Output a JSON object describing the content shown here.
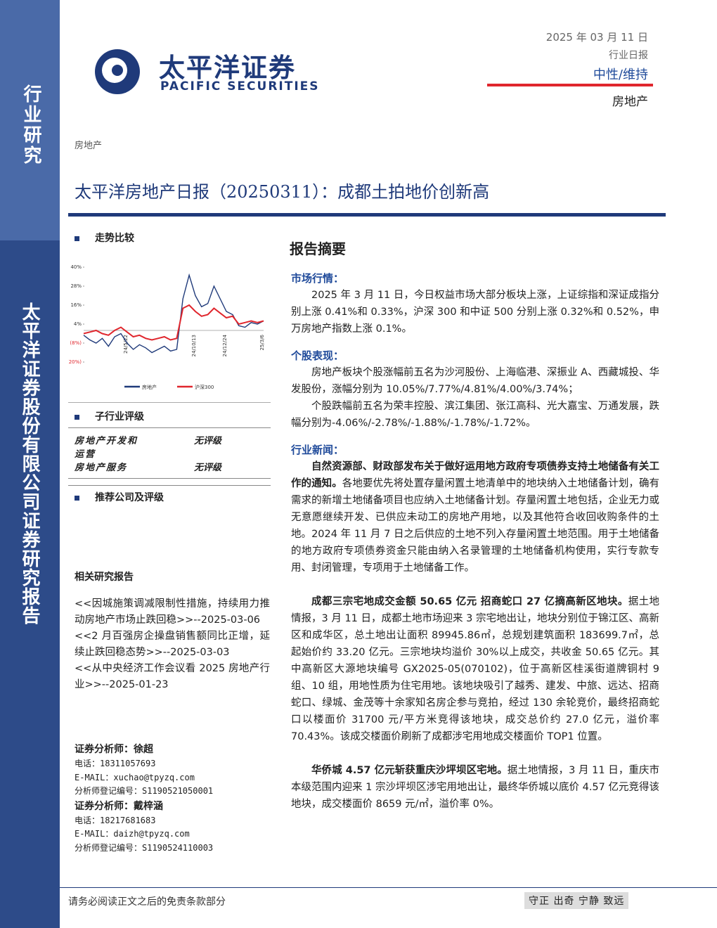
{
  "header": {
    "logo_cn": "太平洋证券",
    "logo_en": "PACIFIC SECURITIES",
    "date": "2025 年 03 月 11 日",
    "report_type": "行业日报",
    "rating": "中性/维持",
    "industry": "房地产"
  },
  "sidebar": {
    "top": "行业研究",
    "bottom": "太平洋证券股份有限公司证券研究报告"
  },
  "breadcrumb": "房地产",
  "title": "太平洋房地产日报（20250311）：成都土拍地价创新高",
  "left": {
    "trend_heading": "走势比较",
    "chart_data": {
      "type": "line",
      "categories": [
        null,
        null,
        null,
        null,
        null,
        null,
        null,
        "24/5/22",
        null,
        null,
        null,
        null,
        null,
        null,
        null,
        null,
        null,
        null,
        "24/10/13",
        null,
        null,
        null,
        null,
        "24/12/24",
        null,
        null,
        null,
        null,
        null,
        "25/3/6"
      ],
      "series": [
        {
          "name": "房地产",
          "color": "#1f3a7a",
          "values": [
            -3,
            -6,
            -8,
            -5,
            -10,
            -4,
            -2,
            -8,
            -12,
            -9,
            -11,
            -14,
            -12,
            -10,
            -13,
            -12,
            20,
            35,
            22,
            15,
            17,
            28,
            20,
            12,
            10,
            3,
            2,
            5,
            4,
            6
          ]
        },
        {
          "name": "沪深300",
          "color": "#e0262d",
          "values": [
            -2,
            -1,
            0,
            -2,
            -3,
            0,
            2,
            -1,
            -4,
            -3,
            -5,
            -6,
            -5,
            -4,
            -6,
            -5,
            14,
            16,
            12,
            9,
            10,
            14,
            11,
            8,
            9,
            4,
            5,
            6,
            5,
            6
          ]
        }
      ],
      "ylim": [
        -20,
        40
      ],
      "yticks": [
        {
          "value": 40,
          "label": "40%"
        },
        {
          "value": 28,
          "label": "28%"
        },
        {
          "value": 16,
          "label": "16%"
        },
        {
          "value": 4,
          "label": "4%"
        },
        {
          "value": -8,
          "label": "(8%)"
        },
        {
          "value": -20,
          "label": "(20%)"
        }
      ]
    },
    "sub_heading": "子行业评级",
    "sub_rows": [
      [
        "房地产开发和运营",
        "无评级"
      ],
      [
        "房地产服务",
        "无评级"
      ]
    ],
    "rec_heading": "推荐公司及评级",
    "related_heading": "相关研究报告",
    "related": [
      "<<因城施策调减限制性措施，持续用力推动房地产市场止跌回稳>>--2025-03-06",
      "<<2 月百强房企操盘销售额同比正增，延续止跌回稳态势>>--2025-03-03",
      "<<从中央经济工作会议看 2025 房地产行业>>--2025-01-23"
    ],
    "analysts": [
      {
        "name": "证券分析师：徐超",
        "phone": "电话：18311057693",
        "email": "E-MAIL：xuchao@tpyzq.com",
        "reg": "分析师登记编号：S1190521050001"
      },
      {
        "name": "证券分析师：戴梓涵",
        "phone": "电话：18217681683",
        "email": "E-MAIL：daizh@tpyzq.com",
        "reg": "分析师登记编号：S1190524110003"
      }
    ]
  },
  "right": {
    "heading": "报告摘要",
    "sections": [
      {
        "title": "市场行情：",
        "paras": [
          {
            "lead": "",
            "text": "2025 年 3 月 11 日，今日权益市场大部分板块上涨，上证综指和深证成指分别上涨 0.41%和 0.33%，沪深 300 和中证 500 分别上涨 0.32%和 0.52%，申万房地产指数上涨 0.1%。"
          }
        ]
      },
      {
        "title": "个股表现：",
        "paras": [
          {
            "lead": "",
            "text": "房地产板块个股涨幅前五名为沙河股份、上海临港、深振业 A、西藏城投、华发股份，涨幅分别为 10.05%/7.77%/4.81%/4.00%/3.74%；"
          },
          {
            "lead": "",
            "text": "个股跌幅前五名为荣丰控股、滨江集团、张江高科、光大嘉宝、万通发展，跌幅分别为-4.06%/-2.78%/-1.88%/-1.78%/-1.72%。"
          }
        ]
      },
      {
        "title": "行业新闻：",
        "paras": [
          {
            "lead": "自然资源部、财政部发布关于做好运用地方政府专项债券支持土地储备有关工作的通知。",
            "text": "各地要优先将处置存量闲置土地清单中的地块纳入土地储备计划，确有需求的新增土地储备项目也应纳入土地储备计划。存量闲置土地包括，企业无力或无意愿继续开发、已供应未动工的房地产用地，以及其他符合收回收购条件的土地。2024 年 11 月 7 日之后供应的土地不列入存量闲置土地范围。用于土地储备的地方政府专项债券资金只能由纳入名录管理的土地储备机构使用，实行专款专用、封闭管理，专项用于土地储备工作。"
          },
          {
            "lead": "成都三宗宅地成交金额 50.65 亿元 招商蛇口 27 亿摘高新区地块。",
            "text": "据土地情报，3 月 11 日，成都土地市场迎来 3 宗宅地出让，地块分别位于锦江区、高新区和成华区，总土地出让面积 89945.86㎡，总规划建筑面积 183699.7㎡，总起始价约 33.20 亿元。三宗地块均溢价 30%以上成交，共收金 50.65 亿元。其中高新区大源地块编号 GX2025-05(070102)，位于高新区桂溪街道牌铜村 9 组、10 组，用地性质为住宅用地。该地块吸引了越秀、建发、中旅、远达、招商蛇口、绿城、金茂等十余家知名房企参与竞拍，经过 130 余轮竞价，最终招商蛇口以楼面价 31700 元/平方米竞得该地块，成交总价约 27.0 亿元，溢价率 70.43%。该成交楼面价刷新了成都涉宅用地成交楼面价 TOP1 位置。"
          },
          {
            "lead": "华侨城 4.57 亿元斩获重庆沙坪坝区宅地。",
            "text": "据土地情报，3 月 11 日，重庆市本级范围内迎来 1 宗沙坪坝区涉宅用地出让，最终华侨城以底价 4.57 亿元竞得该地块，成交楼面价 8659 元/㎡，溢价率 0%。"
          }
        ]
      }
    ]
  },
  "footer": {
    "disclaimer": "请务必阅读正文之后的免责条款部分",
    "motto": "守正 出奇 宁静 致远"
  }
}
